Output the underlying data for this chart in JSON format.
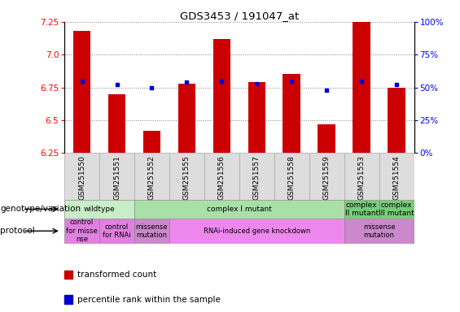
{
  "title": "GDS3453 / 191047_at",
  "samples": [
    "GSM251550",
    "GSM251551",
    "GSM251552",
    "GSM251555",
    "GSM251556",
    "GSM251557",
    "GSM251558",
    "GSM251559",
    "GSM251553",
    "GSM251554"
  ],
  "bar_values": [
    7.18,
    6.7,
    6.42,
    6.78,
    7.12,
    6.79,
    6.85,
    6.47,
    7.25,
    6.75
  ],
  "dot_values": [
    55,
    52,
    50,
    54,
    55,
    53,
    55,
    48,
    55,
    52
  ],
  "ylim": [
    6.25,
    7.25
  ],
  "y2lim": [
    0,
    100
  ],
  "yticks": [
    6.25,
    6.5,
    6.75,
    7.0,
    7.25
  ],
  "y2ticks": [
    0,
    25,
    50,
    75,
    100
  ],
  "bar_color": "#cc0000",
  "dot_color": "#0000cc",
  "genotype_row": [
    {
      "label": "wildtype",
      "start": 0,
      "end": 2,
      "color": "#c8eec8"
    },
    {
      "label": "complex I mutant",
      "start": 2,
      "end": 8,
      "color": "#a8e0a8"
    },
    {
      "label": "complex\nII mutant",
      "start": 8,
      "end": 9,
      "color": "#78cc78"
    },
    {
      "label": "complex\nIII mutant",
      "start": 9,
      "end": 10,
      "color": "#78cc78"
    }
  ],
  "protocol_row": [
    {
      "label": "control\nfor misse\nnse",
      "start": 0,
      "end": 1,
      "color": "#e080e0"
    },
    {
      "label": "control\nfor RNAi",
      "start": 1,
      "end": 2,
      "color": "#e080e0"
    },
    {
      "label": "missense\nmutation",
      "start": 2,
      "end": 3,
      "color": "#cc88cc"
    },
    {
      "label": "RNAi-induced gene knockdown",
      "start": 3,
      "end": 8,
      "color": "#ee88ee"
    },
    {
      "label": "missense\nmutation",
      "start": 8,
      "end": 10,
      "color": "#cc88cc"
    }
  ],
  "left_label_genotype": "genotype/variation",
  "left_label_protocol": "protocol",
  "legend_bar_label": "transformed count",
  "legend_dot_label": "percentile rank within the sample",
  "bg_color": "#ffffff"
}
